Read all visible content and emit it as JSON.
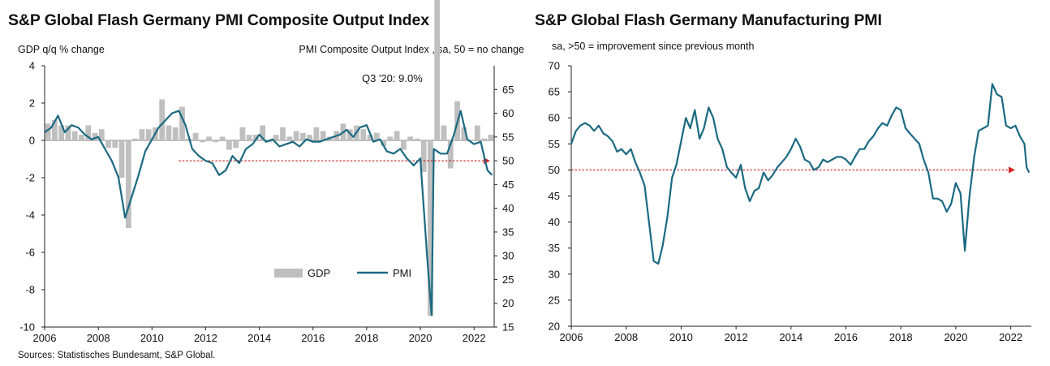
{
  "chart_data": [
    {
      "type": "bar+line",
      "title": "S&P Global Flash Germany PMI Composite Output Index",
      "left_axis_label": "GDP q/q % change",
      "right_axis_label": "PMI Composite  Output  Index  , sa, 50 = no change",
      "annotation": "Q3 '20: 9.0%",
      "source": "Sources: Statistisches Bundesamt, S&P Global.",
      "ylim_left": [
        -10,
        4
      ],
      "ylim_right": [
        15,
        70
      ],
      "xlim": [
        2006,
        2022.75
      ],
      "yticks_left": [
        "4",
        "2",
        "0",
        "-2",
        "-4",
        "-6",
        "-8",
        "-10"
      ],
      "yticks_right": [
        "65",
        "60",
        "55",
        "50",
        "45",
        "40",
        "35",
        "30",
        "25",
        "20",
        "15"
      ],
      "xticks": [
        "2006",
        "2008",
        "2010",
        "2012",
        "2014",
        "2016",
        "2018",
        "2020",
        "2022"
      ],
      "legend": [
        "GDP",
        "PMI"
      ],
      "reference_line": 50,
      "gdp": {
        "name": "GDP",
        "color": "#bfbfbf",
        "x": [
          2006.0,
          2006.25,
          2006.5,
          2006.75,
          2007.0,
          2007.25,
          2007.5,
          2007.75,
          2008.0,
          2008.25,
          2008.5,
          2008.75,
          2009.0,
          2009.25,
          2009.5,
          2009.75,
          2010.0,
          2010.25,
          2010.5,
          2010.75,
          2011.0,
          2011.25,
          2011.5,
          2011.75,
          2012.0,
          2012.25,
          2012.5,
          2012.75,
          2013.0,
          2013.25,
          2013.5,
          2013.75,
          2014.0,
          2014.25,
          2014.5,
          2014.75,
          2015.0,
          2015.25,
          2015.5,
          2015.75,
          2016.0,
          2016.25,
          2016.5,
          2016.75,
          2017.0,
          2017.25,
          2017.5,
          2017.75,
          2018.0,
          2018.25,
          2018.5,
          2018.75,
          2019.0,
          2019.25,
          2019.5,
          2019.75,
          2020.0,
          2020.25,
          2020.5,
          2020.75,
          2021.0,
          2021.25,
          2021.5,
          2021.75,
          2022.0,
          2022.25,
          2022.5
        ],
        "values": [
          0.9,
          1.1,
          0.8,
          0.8,
          0.5,
          0.3,
          0.8,
          0.4,
          0.6,
          -0.4,
          -0.4,
          -2.0,
          -4.7,
          0.1,
          0.6,
          0.6,
          0.7,
          2.2,
          0.8,
          0.7,
          1.8,
          0.1,
          0.4,
          -0.1,
          0.2,
          -0.1,
          0.2,
          -0.5,
          -0.4,
          0.7,
          0.3,
          0.3,
          0.8,
          -0.1,
          0.3,
          0.7,
          0.2,
          0.5,
          0.4,
          0.3,
          0.7,
          0.5,
          0.2,
          0.5,
          0.9,
          0.6,
          0.8,
          0.6,
          0.3,
          0.4,
          -0.3,
          0.2,
          0.5,
          -0.5,
          0.2,
          0.1,
          -1.7,
          -9.4,
          9.0,
          0.8,
          -1.5,
          2.1,
          0.7,
          0.0,
          0.8,
          0.1,
          0.3
        ]
      },
      "pmi": {
        "name": "PMI",
        "color": "#1b6a82",
        "x": [
          2006.0,
          2006.25,
          2006.5,
          2006.75,
          2007.0,
          2007.25,
          2007.5,
          2007.75,
          2008.0,
          2008.25,
          2008.5,
          2008.75,
          2009.0,
          2009.25,
          2009.5,
          2009.75,
          2010.0,
          2010.25,
          2010.5,
          2010.75,
          2011.0,
          2011.25,
          2011.5,
          2011.75,
          2012.0,
          2012.25,
          2012.5,
          2012.75,
          2013.0,
          2013.25,
          2013.5,
          2013.75,
          2014.0,
          2014.25,
          2014.5,
          2014.75,
          2015.0,
          2015.25,
          2015.5,
          2015.75,
          2016.0,
          2016.25,
          2016.5,
          2016.75,
          2017.0,
          2017.25,
          2017.5,
          2017.75,
          2018.0,
          2018.25,
          2018.5,
          2018.75,
          2019.0,
          2019.25,
          2019.5,
          2019.75,
          2020.0,
          2020.25,
          2020.42,
          2020.5,
          2020.75,
          2021.0,
          2021.25,
          2021.5,
          2021.75,
          2022.0,
          2022.25,
          2022.5,
          2022.67
        ],
        "values": [
          56.0,
          57.0,
          59.5,
          56.0,
          57.5,
          57.0,
          55.5,
          54.5,
          55.0,
          52.5,
          50.0,
          46.5,
          38.0,
          42.5,
          47.0,
          52.0,
          54.5,
          57.0,
          58.5,
          60.0,
          60.5,
          57.5,
          52.5,
          51.0,
          50.0,
          49.5,
          47.0,
          48.0,
          51.0,
          49.5,
          52.5,
          53.5,
          55.5,
          54.0,
          54.5,
          53.0,
          53.5,
          54.0,
          53.0,
          54.5,
          54.0,
          54.0,
          54.5,
          55.0,
          55.5,
          56.5,
          55.0,
          57.0,
          57.5,
          54.0,
          54.5,
          52.0,
          51.5,
          52.5,
          50.5,
          49.0,
          50.5,
          30.0,
          17.5,
          52.5,
          51.5,
          51.5,
          55.5,
          60.5,
          54.5,
          53.5,
          54.0,
          48.0,
          47.0
        ]
      }
    },
    {
      "type": "line",
      "title": "S&P Global Flash Germany Manufacturing PMI",
      "ylabel": "sa, >50 = improvement  since previous month",
      "ylim": [
        20,
        70
      ],
      "xlim": [
        2006,
        2022.75
      ],
      "yticks": [
        "70",
        "65",
        "60",
        "55",
        "50",
        "45",
        "40",
        "35",
        "30",
        "25",
        "20"
      ],
      "xticks": [
        "2006",
        "2008",
        "2010",
        "2012",
        "2014",
        "2016",
        "2018",
        "2020",
        "2022"
      ],
      "reference_line": 50,
      "series": [
        {
          "color": "#1b6a82",
          "x": [
            2006.0,
            2006.17,
            2006.33,
            2006.5,
            2006.67,
            2006.83,
            2007.0,
            2007.17,
            2007.33,
            2007.5,
            2007.67,
            2007.83,
            2008.0,
            2008.17,
            2008.33,
            2008.5,
            2008.67,
            2008.83,
            2009.0,
            2009.17,
            2009.33,
            2009.5,
            2009.67,
            2009.83,
            2010.0,
            2010.17,
            2010.33,
            2010.5,
            2010.67,
            2010.83,
            2011.0,
            2011.17,
            2011.33,
            2011.5,
            2011.67,
            2011.83,
            2012.0,
            2012.17,
            2012.33,
            2012.5,
            2012.67,
            2012.83,
            2013.0,
            2013.17,
            2013.33,
            2013.5,
            2013.67,
            2013.83,
            2014.0,
            2014.17,
            2014.33,
            2014.5,
            2014.67,
            2014.83,
            2015.0,
            2015.17,
            2015.33,
            2015.5,
            2015.67,
            2015.83,
            2016.0,
            2016.17,
            2016.33,
            2016.5,
            2016.67,
            2016.83,
            2017.0,
            2017.17,
            2017.33,
            2017.5,
            2017.67,
            2017.83,
            2018.0,
            2018.17,
            2018.33,
            2018.5,
            2018.67,
            2018.83,
            2019.0,
            2019.17,
            2019.33,
            2019.5,
            2019.67,
            2019.83,
            2020.0,
            2020.17,
            2020.33,
            2020.5,
            2020.67,
            2020.83,
            2021.0,
            2021.17,
            2021.33,
            2021.5,
            2021.67,
            2021.83,
            2022.0,
            2022.17,
            2022.33,
            2022.5,
            2022.58,
            2022.67
          ],
          "values": [
            55.0,
            57.5,
            58.5,
            59.0,
            58.5,
            57.5,
            58.5,
            57.0,
            56.5,
            55.5,
            53.5,
            54.0,
            53.0,
            54.0,
            51.5,
            49.5,
            47.0,
            40.0,
            32.5,
            32.0,
            35.5,
            41.0,
            48.5,
            51.0,
            55.5,
            60.0,
            58.0,
            61.5,
            56.0,
            58.0,
            62.0,
            60.0,
            56.0,
            54.0,
            50.5,
            49.5,
            48.5,
            51.0,
            46.5,
            44.0,
            46.0,
            46.5,
            49.5,
            48.0,
            49.0,
            50.5,
            51.5,
            52.5,
            54.0,
            56.0,
            54.5,
            52.0,
            51.5,
            50.0,
            50.5,
            52.0,
            51.5,
            52.0,
            52.5,
            52.5,
            52.0,
            51.0,
            52.5,
            54.0,
            54.0,
            55.5,
            56.5,
            58.0,
            59.0,
            58.5,
            60.5,
            62.0,
            61.5,
            58.0,
            57.0,
            56.0,
            55.0,
            52.0,
            49.5,
            44.5,
            44.5,
            44.0,
            42.0,
            43.5,
            47.5,
            45.5,
            34.5,
            45.0,
            52.5,
            57.5,
            58.0,
            58.5,
            66.5,
            64.5,
            64.0,
            58.5,
            58.0,
            58.5,
            56.5,
            55.0,
            50.5,
            49.5
          ]
        }
      ]
    }
  ]
}
